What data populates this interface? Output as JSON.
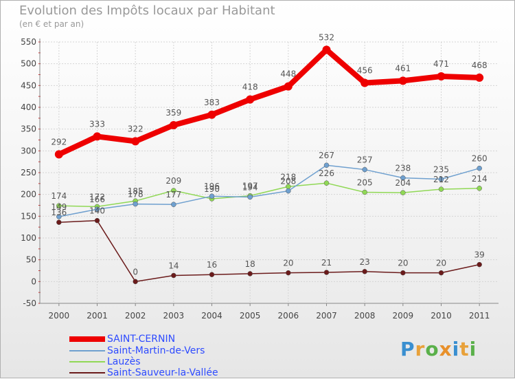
{
  "title": "Evolution des Impôts locaux par Habitant",
  "subtitle": "(en € et par an)",
  "logo": {
    "text": "Proxiti",
    "letters": [
      "P",
      "r",
      "o",
      "x",
      "i",
      "t",
      "i"
    ],
    "colors": [
      "#3a8fd0",
      "#e8a13a",
      "#5ab04a",
      "#e8902a",
      "#3a8fd0",
      "#e8a13a",
      "#5ab04a"
    ]
  },
  "chart_data": {
    "type": "line",
    "x": [
      "2000",
      "2001",
      "2002",
      "2003",
      "2004",
      "2005",
      "2006",
      "2007",
      "2008",
      "2009",
      "2010",
      "2011"
    ],
    "ylim": [
      -50,
      550
    ],
    "yticks": [
      -50,
      0,
      50,
      100,
      150,
      200,
      250,
      300,
      350,
      400,
      450,
      500,
      550
    ],
    "grid": true,
    "legend": "bottom-left",
    "series": [
      {
        "name": "SAINT-CERNIN",
        "color": "#ee0000",
        "values": [
          292,
          333,
          322,
          359,
          383,
          418,
          448,
          532,
          456,
          461,
          471,
          468
        ]
      },
      {
        "name": "Saint-Martin-de-Vers",
        "color": "#6fa0cf",
        "values": [
          149,
          166,
          178,
          177,
          196,
          194,
          208,
          267,
          257,
          238,
          235,
          260
        ]
      },
      {
        "name": "Lauzès",
        "color": "#90d855",
        "values": [
          174,
          172,
          185,
          209,
          190,
          197,
          218,
          226,
          205,
          204,
          212,
          214
        ]
      },
      {
        "name": "Saint-Sauveur-la-Vallée",
        "color": "#6b1b1b",
        "values": [
          136,
          140,
          0,
          14,
          16,
          18,
          20,
          21,
          23,
          20,
          20,
          39
        ]
      }
    ]
  }
}
